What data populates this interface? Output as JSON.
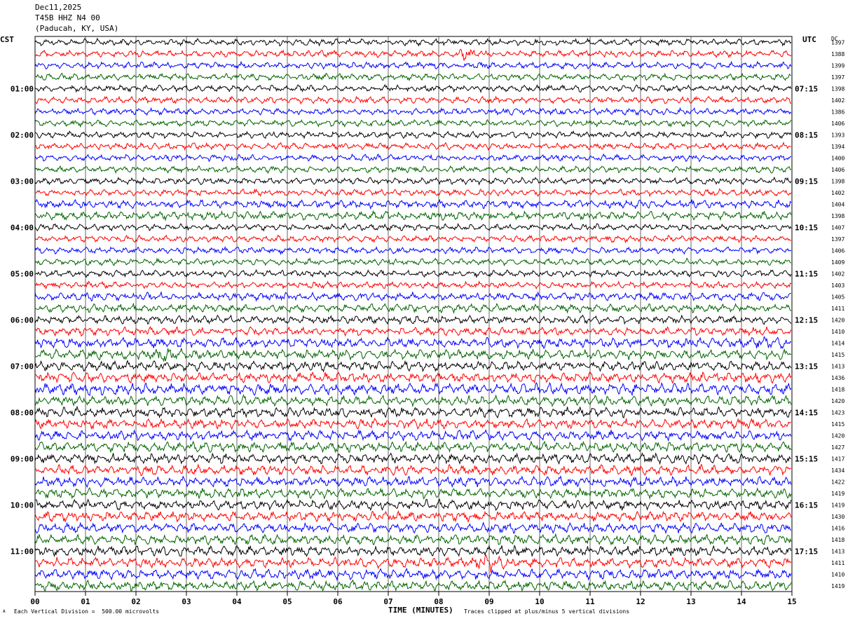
{
  "header": {
    "date": "Dec11,2025",
    "channel": "T45B HHZ N4 00",
    "location": "(Paducah, KY, USA)"
  },
  "left_tz": "CST",
  "right_tz": "UTC",
  "dc_label": "DC",
  "footer": {
    "scale": "Each Vertical Division =  500.00 microvolts",
    "clip": "Traces clipped at plus/minus 5 vertical divisions",
    "mark": "A"
  },
  "colors": {
    "trace_cycle": [
      "#000000",
      "#ff0000",
      "#0000ff",
      "#006400"
    ],
    "grid": "#000000"
  },
  "chart_data": {
    "type": "line",
    "title": "",
    "xlabel": "TIME (MINUTES)",
    "x_ticks": [
      "00",
      "01",
      "02",
      "03",
      "04",
      "05",
      "06",
      "07",
      "08",
      "09",
      "10",
      "11",
      "12",
      "13",
      "14",
      "15"
    ],
    "xlim": [
      0,
      15
    ],
    "left_hour_labels": [
      "01:00",
      "02:00",
      "03:00",
      "04:00",
      "05:00",
      "06:00",
      "07:00",
      "08:00",
      "09:00",
      "10:00",
      "11:00"
    ],
    "right_hour_labels": [
      "07:15",
      "08:15",
      "09:15",
      "10:15",
      "11:15",
      "12:15",
      "13:15",
      "14:15",
      "15:15",
      "16:15",
      "17:15"
    ],
    "rows_per_hour": 4,
    "dc_offsets": [
      1397,
      1388,
      1399,
      1397,
      1398,
      1402,
      1386,
      1406,
      1393,
      1394,
      1400,
      1406,
      1398,
      1402,
      1404,
      1398,
      1407,
      1397,
      1406,
      1409,
      1402,
      1403,
      1405,
      1411,
      1420,
      1410,
      1414,
      1415,
      1413,
      1436,
      1418,
      1420,
      1423,
      1415,
      1420,
      1427,
      1417,
      1434,
      1422,
      1419,
      1419,
      1430,
      1416,
      1418,
      1413,
      1411,
      1410,
      1419
    ],
    "row_amplitude": [
      4,
      4,
      4,
      4,
      4,
      4,
      4,
      4,
      4,
      4,
      4,
      4,
      4,
      4,
      5,
      5,
      4,
      4,
      4,
      4,
      4,
      4,
      5,
      5,
      5,
      5,
      6,
      6,
      6,
      6,
      7,
      6,
      6,
      6,
      6,
      6,
      6,
      6,
      6,
      6,
      6,
      6,
      6,
      6,
      6,
      6,
      6,
      6
    ],
    "events": [
      {
        "row": 1,
        "minute": 8.6,
        "amplitude": 9
      },
      {
        "row": 26,
        "minute": 14.6,
        "amplitude": 10
      },
      {
        "row": 27,
        "minute": 2.6,
        "amplitude": 10
      },
      {
        "row": 45,
        "minute": 9.0,
        "amplitude": 12
      }
    ]
  }
}
